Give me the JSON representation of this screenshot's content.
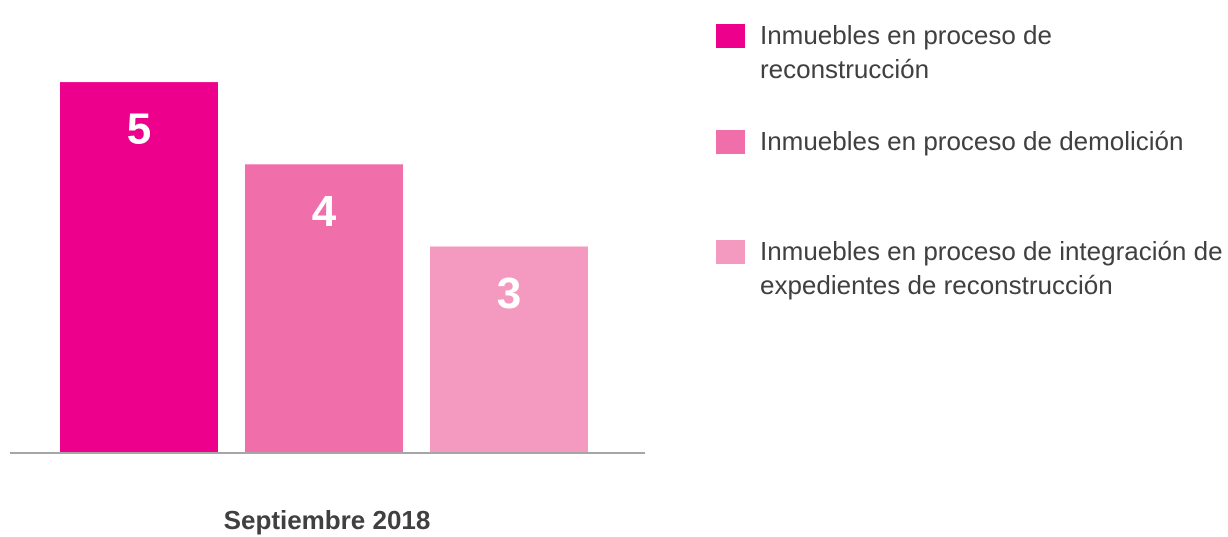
{
  "chart_data": {
    "type": "bar",
    "categories": [
      "Septiembre 2018"
    ],
    "series": [
      {
        "name": "Inmuebles en proceso de reconstrucción",
        "color": "#ec008c",
        "values": [
          5
        ]
      },
      {
        "name": "Inmuebles en proceso de demolición",
        "color": "#f06eaa",
        "values": [
          4
        ]
      },
      {
        "name": "Inmuebles en proceso de integración de expedientes de reconstrucción",
        "color": "#f49ac1",
        "values": [
          3
        ]
      }
    ],
    "ylim": [
      0.5,
      5.5
    ],
    "legend": "right"
  }
}
